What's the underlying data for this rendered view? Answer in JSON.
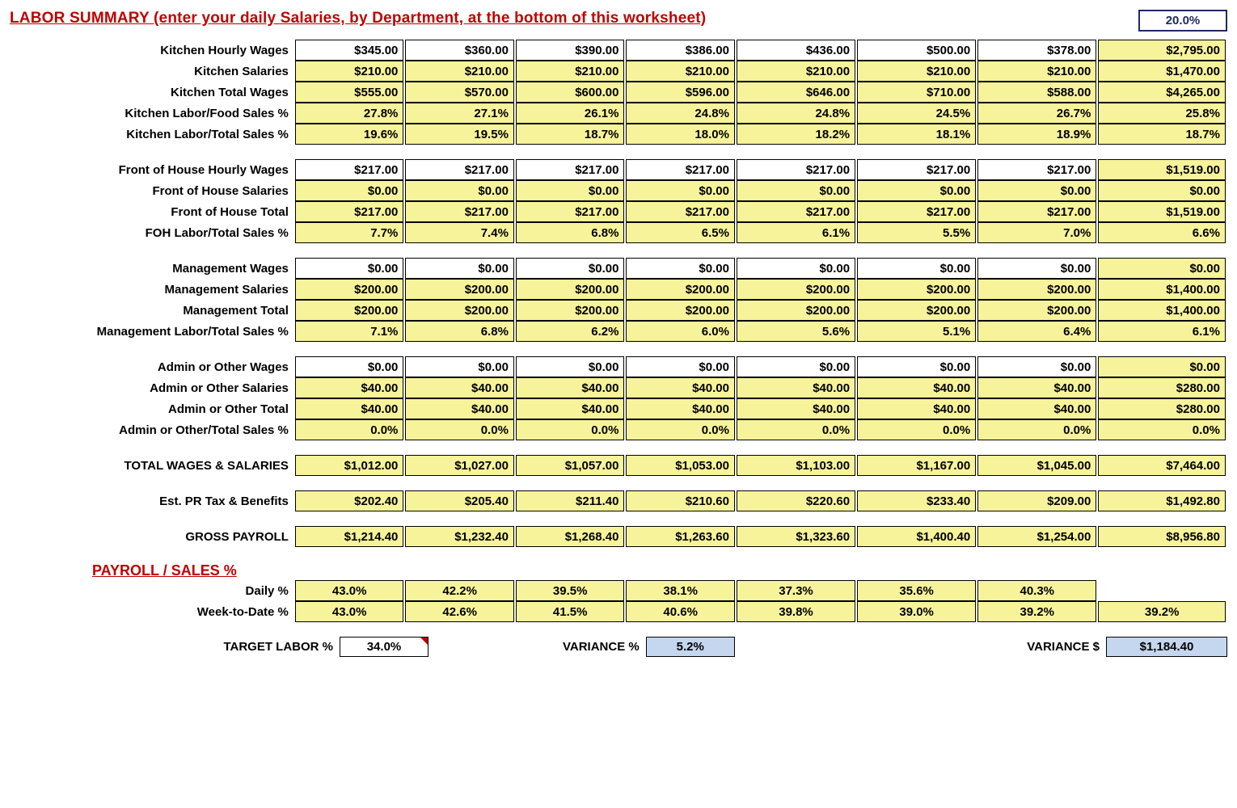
{
  "title": "LABOR SUMMARY (enter your daily Salaries, by Department, at the bottom of this worksheet)",
  "top_box_value": "20.0%",
  "colors": {
    "title_red": "#c00000",
    "navy": "#1f2a60",
    "yellow_fill": "#f7f39a",
    "blue_fill": "#c5d7ef",
    "black": "#000000",
    "white": "#ffffff"
  },
  "groups": [
    {
      "rows": [
        {
          "label": "Kitchen Hourly Wages",
          "style": "white",
          "vals": [
            "$345.00",
            "$360.00",
            "$390.00",
            "$386.00",
            "$436.00",
            "$500.00",
            "$378.00"
          ],
          "total": "$2,795.00",
          "total_style": "yellow"
        },
        {
          "label": "Kitchen Salaries",
          "style": "yellow",
          "vals": [
            "$210.00",
            "$210.00",
            "$210.00",
            "$210.00",
            "$210.00",
            "$210.00",
            "$210.00"
          ],
          "total": "$1,470.00",
          "total_style": "yellow"
        },
        {
          "label": "Kitchen Total Wages",
          "style": "yellow",
          "vals": [
            "$555.00",
            "$570.00",
            "$600.00",
            "$596.00",
            "$646.00",
            "$710.00",
            "$588.00"
          ],
          "total": "$4,265.00",
          "total_style": "yellow"
        },
        {
          "label": "Kitchen Labor/Food Sales %",
          "style": "yellow",
          "vals": [
            "27.8%",
            "27.1%",
            "26.1%",
            "24.8%",
            "24.8%",
            "24.5%",
            "26.7%"
          ],
          "total": "25.8%",
          "total_style": "yellow"
        },
        {
          "label": "Kitchen Labor/Total Sales %",
          "style": "yellow",
          "vals": [
            "19.6%",
            "19.5%",
            "18.7%",
            "18.0%",
            "18.2%",
            "18.1%",
            "18.9%"
          ],
          "total": "18.7%",
          "total_style": "yellow"
        }
      ]
    },
    {
      "rows": [
        {
          "label": "Front of House Hourly Wages",
          "style": "white",
          "vals": [
            "$217.00",
            "$217.00",
            "$217.00",
            "$217.00",
            "$217.00",
            "$217.00",
            "$217.00"
          ],
          "total": "$1,519.00",
          "total_style": "yellow"
        },
        {
          "label": "Front of House Salaries",
          "style": "yellow",
          "vals": [
            "$0.00",
            "$0.00",
            "$0.00",
            "$0.00",
            "$0.00",
            "$0.00",
            "$0.00"
          ],
          "total": "$0.00",
          "total_style": "yellow"
        },
        {
          "label": "Front of House Total",
          "style": "yellow",
          "vals": [
            "$217.00",
            "$217.00",
            "$217.00",
            "$217.00",
            "$217.00",
            "$217.00",
            "$217.00"
          ],
          "total": "$1,519.00",
          "total_style": "yellow"
        },
        {
          "label": "FOH Labor/Total Sales %",
          "style": "yellow",
          "vals": [
            "7.7%",
            "7.4%",
            "6.8%",
            "6.5%",
            "6.1%",
            "5.5%",
            "7.0%"
          ],
          "total": "6.6%",
          "total_style": "yellow"
        }
      ]
    },
    {
      "rows": [
        {
          "label": "Management Wages",
          "style": "white",
          "vals": [
            "$0.00",
            "$0.00",
            "$0.00",
            "$0.00",
            "$0.00",
            "$0.00",
            "$0.00"
          ],
          "total": "$0.00",
          "total_style": "yellow"
        },
        {
          "label": "Management Salaries",
          "style": "yellow",
          "vals": [
            "$200.00",
            "$200.00",
            "$200.00",
            "$200.00",
            "$200.00",
            "$200.00",
            "$200.00"
          ],
          "total": "$1,400.00",
          "total_style": "yellow"
        },
        {
          "label": "Management Total",
          "style": "yellow",
          "vals": [
            "$200.00",
            "$200.00",
            "$200.00",
            "$200.00",
            "$200.00",
            "$200.00",
            "$200.00"
          ],
          "total": "$1,400.00",
          "total_style": "yellow"
        },
        {
          "label": "Management Labor/Total Sales %",
          "style": "yellow",
          "vals": [
            "7.1%",
            "6.8%",
            "6.2%",
            "6.0%",
            "5.6%",
            "5.1%",
            "6.4%"
          ],
          "total": "6.1%",
          "total_style": "yellow"
        }
      ]
    },
    {
      "rows": [
        {
          "label": "Admin or Other Wages",
          "style": "white",
          "vals": [
            "$0.00",
            "$0.00",
            "$0.00",
            "$0.00",
            "$0.00",
            "$0.00",
            "$0.00"
          ],
          "total": "$0.00",
          "total_style": "yellow"
        },
        {
          "label": "Admin or Other Salaries",
          "style": "yellow",
          "vals": [
            "$40.00",
            "$40.00",
            "$40.00",
            "$40.00",
            "$40.00",
            "$40.00",
            "$40.00"
          ],
          "total": "$280.00",
          "total_style": "yellow"
        },
        {
          "label": "Admin or Other Total",
          "style": "yellow",
          "vals": [
            "$40.00",
            "$40.00",
            "$40.00",
            "$40.00",
            "$40.00",
            "$40.00",
            "$40.00"
          ],
          "total": "$280.00",
          "total_style": "yellow"
        },
        {
          "label": "Admin or Other/Total Sales %",
          "style": "yellow",
          "vals": [
            "0.0%",
            "0.0%",
            "0.0%",
            "0.0%",
            "0.0%",
            "0.0%",
            "0.0%"
          ],
          "total": "0.0%",
          "total_style": "yellow"
        }
      ]
    }
  ],
  "summary_rows": [
    {
      "label": "TOTAL WAGES & SALARIES",
      "vals": [
        "$1,012.00",
        "$1,027.00",
        "$1,057.00",
        "$1,053.00",
        "$1,103.00",
        "$1,167.00",
        "$1,045.00"
      ],
      "total": "$7,464.00"
    },
    {
      "label": "Est. PR Tax & Benefits",
      "vals": [
        "$202.40",
        "$205.40",
        "$211.40",
        "$210.60",
        "$220.60",
        "$233.40",
        "$209.00"
      ],
      "total": "$1,492.80"
    },
    {
      "label": "GROSS PAYROLL",
      "vals": [
        "$1,214.40",
        "$1,232.40",
        "$1,268.40",
        "$1,263.60",
        "$1,323.60",
        "$1,400.40",
        "$1,254.00"
      ],
      "total": "$8,956.80"
    }
  ],
  "payroll_section_title": "PAYROLL / SALES %",
  "daily_pct": {
    "label": "Daily %",
    "vals": [
      "43.0%",
      "42.2%",
      "39.5%",
      "38.1%",
      "37.3%",
      "35.6%",
      "40.3%"
    ]
  },
  "wtd_pct": {
    "label": "Week-to-Date %",
    "vals": [
      "43.0%",
      "42.6%",
      "41.5%",
      "40.6%",
      "39.8%",
      "39.0%",
      "39.2%"
    ],
    "total": "39.2%"
  },
  "bottom": {
    "target_label": "TARGET LABOR %",
    "target_value": "34.0%",
    "var_pct_label": "VARIANCE %",
    "var_pct_value": "5.2%",
    "var_dollar_label": "VARIANCE $",
    "var_dollar_value": "$1,184.40"
  }
}
